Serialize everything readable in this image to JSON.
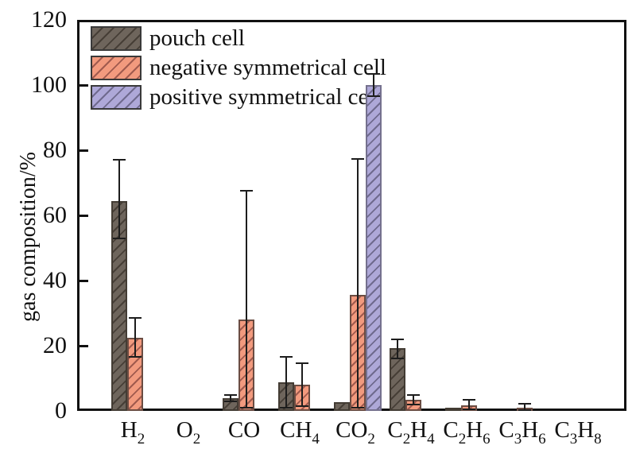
{
  "chart_data": {
    "type": "bar",
    "title": "",
    "xlabel": "",
    "ylabel": "gas composition/%",
    "ylim": [
      0,
      120
    ],
    "yticks": [
      0,
      20,
      40,
      60,
      80,
      100,
      120
    ],
    "grid": false,
    "legend_position": "upper-left-inside",
    "background_color": "#ffffff",
    "axis_color": "#111111",
    "error_bar_color": "#1d1d1d",
    "categories": [
      "H2",
      "O2",
      "CO",
      "CH4",
      "CO2",
      "C2H4",
      "C2H6",
      "C3H6",
      "C3H8"
    ],
    "category_segments": [
      [
        {
          "text": "H",
          "sub": "2"
        }
      ],
      [
        {
          "text": "O",
          "sub": "2"
        }
      ],
      [
        {
          "text": "CO",
          "sub": ""
        }
      ],
      [
        {
          "text": "CH",
          "sub": "4"
        }
      ],
      [
        {
          "text": "CO",
          "sub": "2"
        }
      ],
      [
        {
          "text": "C",
          "sub": "2"
        },
        {
          "text": "H",
          "sub": "4"
        }
      ],
      [
        {
          "text": "C",
          "sub": "2"
        },
        {
          "text": "H",
          "sub": "6"
        }
      ],
      [
        {
          "text": "C",
          "sub": "3"
        },
        {
          "text": "H",
          "sub": "6"
        }
      ],
      [
        {
          "text": "C",
          "sub": "3"
        },
        {
          "text": "H",
          "sub": "8"
        }
      ]
    ],
    "series": [
      {
        "name": "pouch cell",
        "fill": "#6e655c",
        "hatch": "#463e36",
        "border": "#433c34",
        "values": [
          64.5,
          0,
          4.0,
          8.8,
          2.8,
          19.3,
          1.0,
          0,
          0
        ],
        "errors": [
          [
            53,
            77
          ],
          null,
          [
            3,
            5
          ],
          [
            1,
            16.6
          ],
          null,
          [
            16.1,
            22
          ],
          null,
          null,
          null
        ]
      },
      {
        "name": "negative symmetrical cell",
        "fill": "#f29a7e",
        "hatch": "#a05a4e",
        "border": "#6b4d43",
        "values": [
          22.5,
          0,
          28.0,
          8.1,
          35.5,
          3.4,
          1.8,
          1.0,
          0
        ],
        "errors": [
          [
            16.5,
            28.5
          ],
          null,
          [
            1,
            67.5
          ],
          [
            1.5,
            14.7
          ],
          [
            1,
            77.3
          ],
          [
            2,
            4.9
          ],
          [
            0.5,
            3.4
          ],
          [
            0.3,
            2.1
          ],
          null
        ]
      },
      {
        "name": "positive symmetrical cell",
        "fill": "#aea8d8",
        "hatch": "#6f6a8e",
        "border": "#75718e",
        "values": [
          0,
          0,
          0,
          0,
          100,
          0,
          0,
          0,
          0
        ],
        "errors": [
          null,
          null,
          null,
          null,
          [
            96.5,
            103.5
          ],
          null,
          null,
          null,
          null
        ]
      }
    ]
  }
}
